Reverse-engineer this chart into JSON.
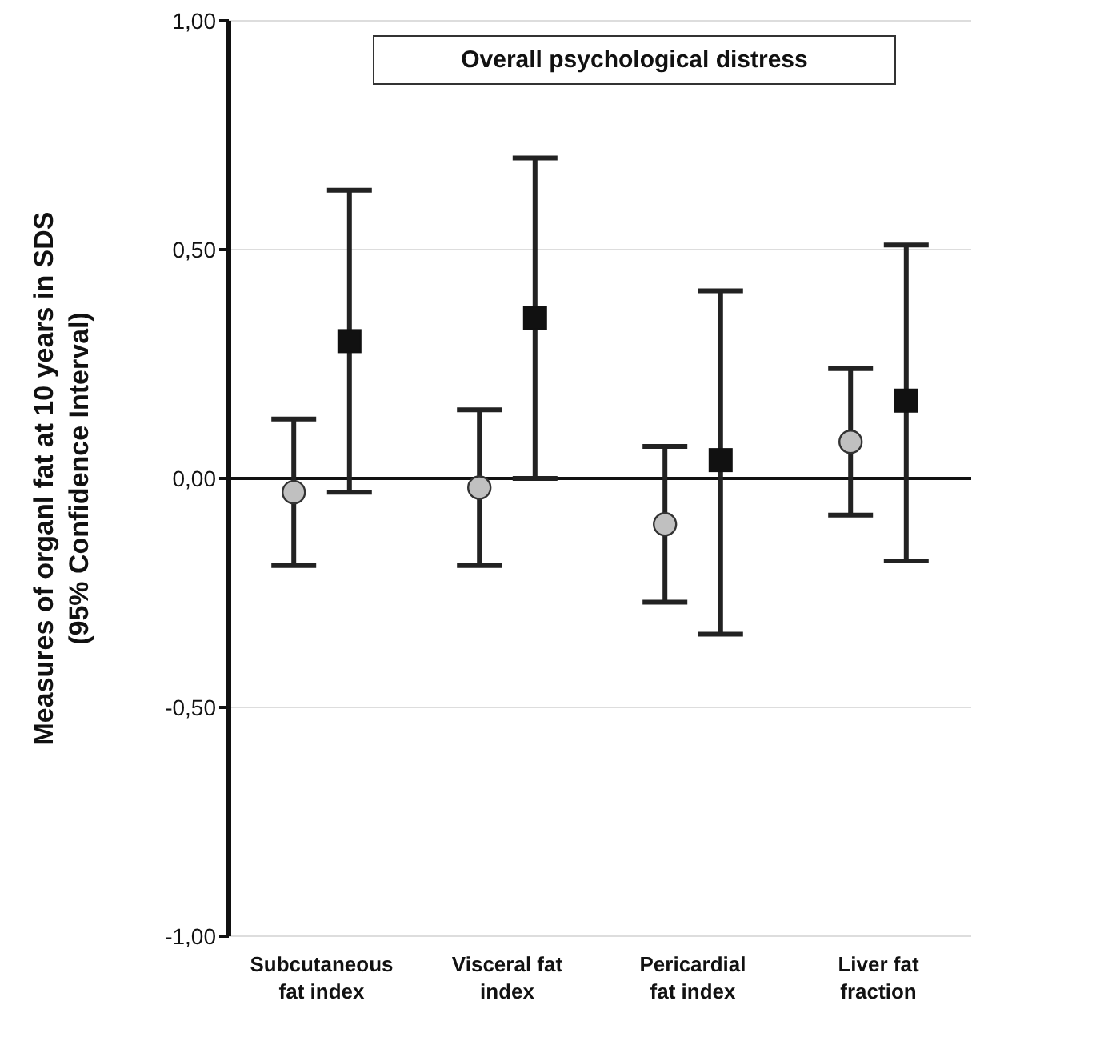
{
  "chart_data": {
    "type": "scatter",
    "title": "Overall psychological distress",
    "ylabel": "Measures of organl fat at 10 years in SDS\n(95% Confidence Interval)",
    "categories": [
      "Subcutaneous fat index",
      "Visceral fat index",
      "Pericardial fat index",
      "Liver fat fraction"
    ],
    "series": [
      {
        "color": "#c0c0c0",
        "marker": "circle",
        "values": [
          -0.03,
          -0.02,
          -0.1,
          0.08
        ],
        "errors": [
          [
            -0.19,
            0.13
          ],
          [
            -0.19,
            0.15
          ],
          [
            -0.27,
            0.07
          ],
          [
            -0.08,
            0.24
          ]
        ]
      },
      {
        "color": "#111111",
        "marker": "square",
        "values": [
          0.3,
          0.35,
          0.04,
          0.17
        ],
        "errors": [
          [
            -0.03,
            0.63
          ],
          [
            0.0,
            0.7
          ],
          [
            -0.34,
            0.41
          ],
          [
            -0.18,
            0.51
          ]
        ]
      }
    ],
    "ylim": [
      -1,
      1
    ],
    "yticks": [
      {
        "value": -1,
        "label": "-1,00"
      },
      {
        "value": -0.5,
        "label": "-0,50"
      },
      {
        "value": 0,
        "label": "0,00"
      },
      {
        "value": 0.5,
        "label": "0,50"
      },
      {
        "value": 1,
        "label": "1,00"
      }
    ],
    "ref_lines": [
      {
        "axis": "y",
        "value": 0,
        "color": "#111111"
      }
    ],
    "grid": "y",
    "legend": false
  }
}
